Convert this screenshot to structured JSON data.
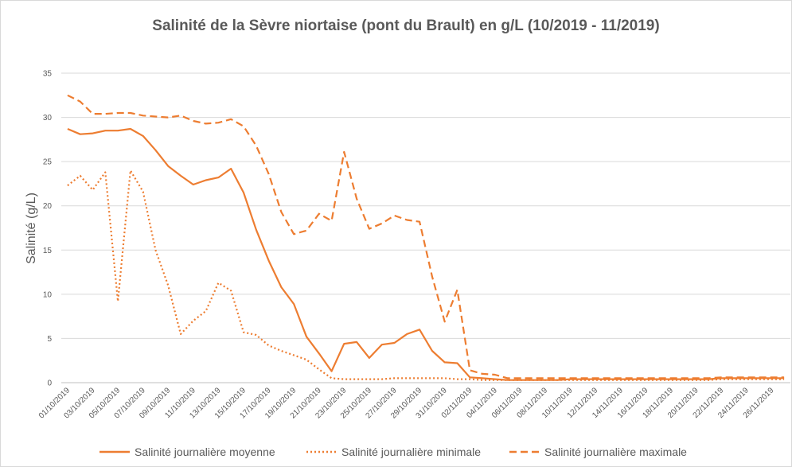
{
  "chart_data": {
    "type": "line",
    "title": "Salinité de la Sèvre niortaise (pont du Brault) en g/L (10/2019 - 11/2019)",
    "y_label": "Salinité (g/L)",
    "categories": [
      "01/10/2019",
      null,
      "03/10/2019",
      null,
      "05/10/2019",
      null,
      "07/10/2019",
      null,
      "09/10/2019",
      null,
      "11/10/2019",
      null,
      "13/10/2019",
      null,
      "15/10/2019",
      null,
      "17/10/2019",
      null,
      "19/10/2019",
      null,
      "21/10/2019",
      null,
      "23/10/2019",
      null,
      "25/10/2019",
      null,
      "27/10/2019",
      null,
      "29/10/2019",
      null,
      "31/10/2019",
      null,
      "02/11/2019",
      null,
      "04/11/2019",
      null,
      "06/11/2019",
      null,
      "08/11/2019",
      null,
      "10/11/2019",
      null,
      "12/11/2019",
      null,
      "14/11/2019",
      null,
      "16/11/2019",
      null,
      "18/11/2019",
      null,
      "20/11/2019",
      null,
      "22/11/2019",
      null,
      "24/11/2019",
      null,
      "26/11/2019",
      null
    ],
    "series": [
      {
        "name": "Salinité journalière moyenne",
        "color": "#ed7d31",
        "dash": "solid",
        "values": [
          28.7,
          28.1,
          28.2,
          28.5,
          28.5,
          28.7,
          27.9,
          26.3,
          24.5,
          23.4,
          22.4,
          22.9,
          23.2,
          24.2,
          21.5,
          17.3,
          13.8,
          10.8,
          8.9,
          5.2,
          3.3,
          1.3,
          4.4,
          4.6,
          2.8,
          4.3,
          4.5,
          5.5,
          6.0,
          3.6,
          2.3,
          2.2,
          0.6,
          0.5,
          0.4,
          0.3,
          0.3,
          0.3,
          0.3,
          0.3,
          0.4,
          0.4,
          0.4,
          0.4,
          0.4,
          0.4,
          0.4,
          0.4,
          0.4,
          0.4,
          0.4,
          0.4,
          0.5,
          0.5,
          0.5,
          0.5,
          0.5,
          0.5
        ]
      },
      {
        "name": "Salinité journalière minimale",
        "color": "#ed7d31",
        "dash": "dotted",
        "values": [
          22.3,
          23.4,
          21.8,
          23.8,
          9.2,
          24.0,
          21.6,
          15.0,
          11.0,
          5.5,
          7.0,
          8.1,
          11.3,
          10.4,
          5.7,
          5.4,
          4.2,
          3.6,
          3.1,
          2.6,
          1.5,
          0.5,
          0.4,
          0.4,
          0.4,
          0.4,
          0.5,
          0.5,
          0.5,
          0.5,
          0.5,
          0.4,
          0.4,
          0.3,
          0.3,
          0.3,
          0.3,
          0.3,
          0.3,
          0.3,
          0.3,
          0.3,
          0.3,
          0.3,
          0.3,
          0.3,
          0.3,
          0.3,
          0.3,
          0.3,
          0.3,
          0.3,
          0.4,
          0.4,
          0.4,
          0.4,
          0.4,
          0.4
        ]
      },
      {
        "name": "Salinité journalière maximale",
        "color": "#ed7d31",
        "dash": "dashed",
        "values": [
          32.5,
          31.8,
          30.4,
          30.4,
          30.5,
          30.5,
          30.2,
          30.1,
          30.0,
          30.2,
          29.6,
          29.3,
          29.4,
          29.8,
          29.0,
          26.8,
          23.6,
          19.3,
          16.8,
          17.2,
          19.1,
          18.3,
          26.1,
          20.8,
          17.4,
          18.0,
          18.9,
          18.4,
          18.2,
          12.0,
          6.9,
          10.5,
          1.4,
          1.0,
          0.9,
          0.5,
          0.5,
          0.5,
          0.5,
          0.5,
          0.5,
          0.5,
          0.5,
          0.5,
          0.5,
          0.5,
          0.5,
          0.5,
          0.5,
          0.5,
          0.5,
          0.5,
          0.6,
          0.6,
          0.6,
          0.6,
          0.6,
          0.6
        ]
      }
    ],
    "ylim": [
      0,
      35
    ],
    "yticks": [
      0,
      5,
      10,
      15,
      20,
      25,
      30,
      35
    ],
    "grid": true,
    "legend": "bottom"
  }
}
